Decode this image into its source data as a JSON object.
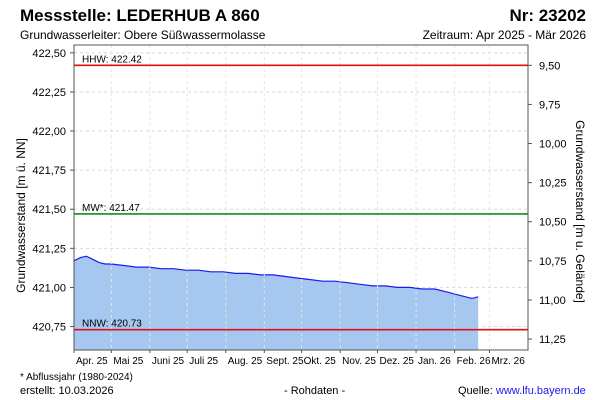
{
  "header": {
    "title": "Messstelle: LEDERHUB A 860",
    "number": "Nr: 23202",
    "aquifer": "Grundwasserleiter:  Obere Süßwassermolasse",
    "period": "Zeitraum: Apr 2025 - Mär 2026"
  },
  "footer": {
    "footnote": "* Abflussjahr (1980-2024)",
    "created": "erstellt:  10.03.2026",
    "rohdaten": "- Rohdaten -",
    "source_label": "Quelle: ",
    "source_link": "www.lfu.bayern.de"
  },
  "chart_data": {
    "type": "area",
    "ylabel_left": "Grundwasserstand [m ü. NN]",
    "ylabel_right": "Grundwasserstand [m u. Gelände]",
    "ylim": [
      420.6,
      422.55
    ],
    "yticks_left": [
      420.75,
      421.0,
      421.25,
      421.5,
      421.75,
      422.0,
      422.25,
      422.5
    ],
    "yticks_left_labels": [
      "420,75",
      "421,00",
      "421,25",
      "421,50",
      "421,75",
      "422,00",
      "422,25",
      "422,50"
    ],
    "right_axis_offset": 431.92,
    "yticks_right": [
      9.5,
      9.75,
      10.0,
      10.25,
      10.5,
      10.75,
      11.0,
      11.25
    ],
    "yticks_right_labels": [
      "9,50",
      "9,75",
      "10,00",
      "10,25",
      "10,50",
      "10,75",
      "11,00",
      "11,25"
    ],
    "xlim_days": [
      0,
      365
    ],
    "x_labels": [
      "Apr. 25",
      "Mai 25",
      "Juni 25",
      "Juli 25",
      "Aug. 25",
      "Sept. 25",
      "Okt. 25",
      "Nov. 25",
      "Dez. 25",
      "Jan. 26",
      "Feb. 26",
      "Mrz. 26"
    ],
    "x_label_days": [
      0,
      30,
      61,
      91,
      122,
      153,
      183,
      214,
      244,
      275,
      306,
      334
    ],
    "reference_lines": [
      {
        "label": "HHW: 422.42",
        "value": 422.42,
        "color": "#e01010"
      },
      {
        "label": "MW*: 421.47",
        "value": 421.47,
        "color": "#109010"
      },
      {
        "label": "NNW: 420.73",
        "value": 420.73,
        "color": "#e01010"
      }
    ],
    "series": [
      {
        "line_color": "#1a1aee",
        "fill_color": "#a6c8f0",
        "x": [
          0,
          5,
          10,
          15,
          20,
          25,
          30,
          40,
          50,
          60,
          70,
          80,
          90,
          100,
          110,
          120,
          130,
          140,
          150,
          160,
          170,
          180,
          190,
          200,
          210,
          220,
          230,
          240,
          250,
          260,
          270,
          280,
          290,
          300,
          310,
          320,
          325
        ],
        "y": [
          421.17,
          421.19,
          421.2,
          421.18,
          421.16,
          421.15,
          421.15,
          421.14,
          421.13,
          421.13,
          421.12,
          421.12,
          421.11,
          421.11,
          421.1,
          421.1,
          421.09,
          421.09,
          421.08,
          421.08,
          421.07,
          421.06,
          421.05,
          421.04,
          421.04,
          421.03,
          421.02,
          421.01,
          421.01,
          421.0,
          421.0,
          420.99,
          420.99,
          420.97,
          420.95,
          420.93,
          420.94
        ]
      }
    ]
  }
}
